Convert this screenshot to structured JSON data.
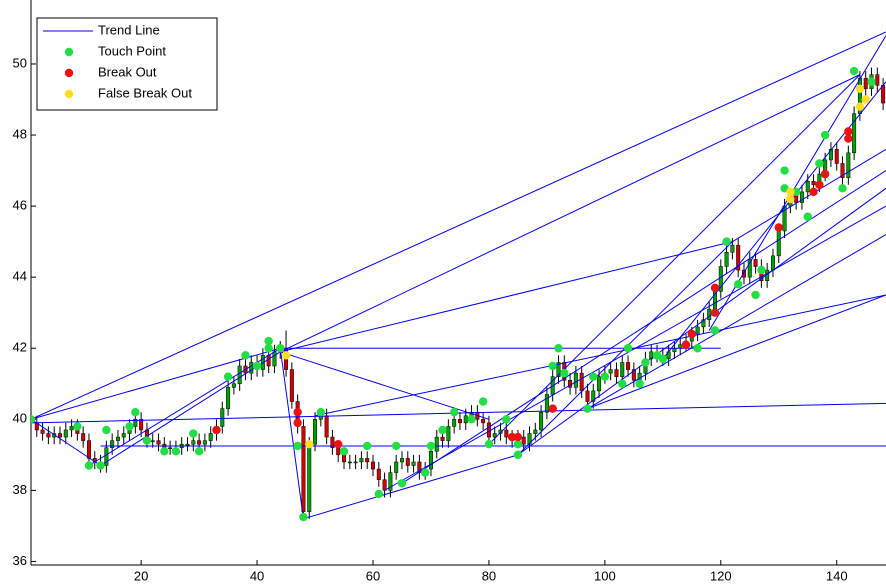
{
  "chart_data": {
    "type": "candlestick",
    "xlim": [
      1,
      148.5
    ],
    "ylim": [
      35.9,
      51.8
    ],
    "xticks": [
      20,
      40,
      60,
      80,
      100,
      120,
      140
    ],
    "yticks": [
      36,
      38,
      40,
      42,
      44,
      46,
      48,
      50
    ],
    "up_color": "#00a000",
    "down_color": "#d00000",
    "wick_color": "#000000",
    "legend": "upper left",
    "x": [
      1,
      2,
      3,
      4,
      5,
      6,
      7,
      8,
      9,
      10,
      11,
      12,
      13,
      14,
      15,
      16,
      17,
      18,
      19,
      20,
      21,
      22,
      23,
      24,
      25,
      26,
      27,
      28,
      29,
      30,
      31,
      32,
      33,
      34,
      35,
      36,
      37,
      38,
      39,
      40,
      41,
      42,
      43,
      44,
      45,
      46,
      47,
      48,
      49,
      50,
      51,
      52,
      53,
      54,
      55,
      56,
      57,
      58,
      59,
      60,
      61,
      62,
      63,
      64,
      65,
      66,
      67,
      68,
      69,
      70,
      71,
      72,
      73,
      74,
      75,
      76,
      77,
      78,
      79,
      80,
      81,
      82,
      83,
      84,
      85,
      86,
      87,
      88,
      89,
      90,
      91,
      92,
      93,
      94,
      95,
      96,
      97,
      98,
      99,
      100,
      101,
      102,
      103,
      104,
      105,
      106,
      107,
      108,
      109,
      110,
      111,
      112,
      113,
      114,
      115,
      116,
      117,
      118,
      119,
      120,
      121,
      122,
      123,
      124,
      125,
      126,
      127,
      128,
      129,
      130,
      131,
      132,
      133,
      134,
      135,
      136,
      137,
      138,
      139,
      140,
      141,
      142,
      143,
      144,
      145,
      146,
      147,
      148
    ],
    "open": [
      40.0,
      39.9,
      39.7,
      39.6,
      39.5,
      39.6,
      39.5,
      39.7,
      39.8,
      39.6,
      39.4,
      38.9,
      38.8,
      38.7,
      39.2,
      39.4,
      39.5,
      39.6,
      39.8,
      40.0,
      39.7,
      39.4,
      39.4,
      39.3,
      39.2,
      39.2,
      39.2,
      39.3,
      39.3,
      39.4,
      39.3,
      39.4,
      39.6,
      39.8,
      40.3,
      40.9,
      41.0,
      41.5,
      41.3,
      41.6,
      41.4,
      41.8,
      41.5,
      41.9,
      42.0,
      41.4,
      40.5,
      39.8,
      37.4,
      39.3,
      40.0,
      40.1,
      39.5,
      39.2,
      39.0,
      38.8,
      38.8,
      38.8,
      38.9,
      38.8,
      38.6,
      38.3,
      38.0,
      38.5,
      38.8,
      38.9,
      38.7,
      38.8,
      38.5,
      38.6,
      39.1,
      39.5,
      39.4,
      39.8,
      40.0,
      39.9,
      40.1,
      40.2,
      40.0,
      39.9,
      39.5,
      39.6,
      39.7,
      39.5,
      39.4,
      39.5,
      39.3,
      39.6,
      39.7,
      40.2,
      40.7,
      41.2,
      41.6,
      41.1,
      40.9,
      41.3,
      40.8,
      40.5,
      40.8,
      41.2,
      41.3,
      41.4,
      41.2,
      41.6,
      41.4,
      41.1,
      41.3,
      41.7,
      41.9,
      41.8,
      41.7,
      41.9,
      42.0,
      42.1,
      42.2,
      42.4,
      42.6,
      42.8,
      43.1,
      43.6,
      44.3,
      44.7,
      44.9,
      44.2,
      44.0,
      44.5,
      44.3,
      43.9,
      44.2,
      44.6,
      45.3,
      46.0,
      46.3,
      46.1,
      46.4,
      46.7,
      46.6,
      46.9,
      47.3,
      47.6,
      47.2,
      46.8,
      47.5,
      48.6,
      49.6,
      49.3,
      49.7,
      49.4
    ],
    "high": [
      40.2,
      40.1,
      39.9,
      39.8,
      39.8,
      39.8,
      39.9,
      40.0,
      40.0,
      39.8,
      39.6,
      39.1,
      39.0,
      39.4,
      39.6,
      39.7,
      39.8,
      40.0,
      40.2,
      40.2,
      39.9,
      39.6,
      39.6,
      39.5,
      39.4,
      39.4,
      39.5,
      39.5,
      39.6,
      39.6,
      39.6,
      39.8,
      40.0,
      40.5,
      41.1,
      41.2,
      41.7,
      41.7,
      41.8,
      41.8,
      42.0,
      42.0,
      42.1,
      42.2,
      42.5,
      41.6,
      40.7,
      40.0,
      39.5,
      40.2,
      40.3,
      40.3,
      39.7,
      39.4,
      39.2,
      39.0,
      39.0,
      39.1,
      39.1,
      39.0,
      38.8,
      38.5,
      38.7,
      39.0,
      39.1,
      39.1,
      39.0,
      39.0,
      38.8,
      39.3,
      39.7,
      39.7,
      40.0,
      40.2,
      40.2,
      40.3,
      40.4,
      40.4,
      40.2,
      40.1,
      39.8,
      39.9,
      39.9,
      39.7,
      39.7,
      39.7,
      39.8,
      39.9,
      40.4,
      40.9,
      41.4,
      41.8,
      41.8,
      41.3,
      41.5,
      41.5,
      41.0,
      41.0,
      41.4,
      41.5,
      41.6,
      41.6,
      41.8,
      41.8,
      41.6,
      41.5,
      41.9,
      42.1,
      42.1,
      42.0,
      42.1,
      42.2,
      42.3,
      42.4,
      42.6,
      42.8,
      43.0,
      43.3,
      43.8,
      44.5,
      44.9,
      45.1,
      45.1,
      44.4,
      44.7,
      44.7,
      44.5,
      44.4,
      44.8,
      45.5,
      46.2,
      46.5,
      46.5,
      46.6,
      46.9,
      46.9,
      47.1,
      47.5,
      47.8,
      47.8,
      47.4,
      47.7,
      48.8,
      49.8,
      49.8,
      49.9,
      49.9,
      49.6
    ],
    "low": [
      39.7,
      39.5,
      39.4,
      39.3,
      39.3,
      39.3,
      39.3,
      39.5,
      39.4,
      39.2,
      38.7,
      38.6,
      38.5,
      38.5,
      39.0,
      39.2,
      39.3,
      39.4,
      39.6,
      39.5,
      39.2,
      39.2,
      39.1,
      39.0,
      39.0,
      39.0,
      39.0,
      39.1,
      39.1,
      39.1,
      39.1,
      39.2,
      39.4,
      39.6,
      40.1,
      40.7,
      40.8,
      41.1,
      41.1,
      41.2,
      41.2,
      41.3,
      41.3,
      41.7,
      41.2,
      40.3,
      39.6,
      37.2,
      37.2,
      39.1,
      39.8,
      39.3,
      39.0,
      38.8,
      38.6,
      38.6,
      38.6,
      38.6,
      38.6,
      38.4,
      38.1,
      37.8,
      37.8,
      38.3,
      38.6,
      38.5,
      38.5,
      38.3,
      38.3,
      38.4,
      38.9,
      39.2,
      39.2,
      39.6,
      39.7,
      39.7,
      39.9,
      39.8,
      39.7,
      39.3,
      39.3,
      39.4,
      39.3,
      39.2,
      39.2,
      39.1,
      39.1,
      39.4,
      39.5,
      40.0,
      40.5,
      41.0,
      40.9,
      40.7,
      40.7,
      40.6,
      40.3,
      40.3,
      40.6,
      41.0,
      41.1,
      41.0,
      41.0,
      41.2,
      40.9,
      40.9,
      41.1,
      41.5,
      41.6,
      41.5,
      41.5,
      41.7,
      41.8,
      41.9,
      42.0,
      42.2,
      42.4,
      42.6,
      42.9,
      43.4,
      44.1,
      44.5,
      44.0,
      43.8,
      43.8,
      44.1,
      43.7,
      43.7,
      44.0,
      44.4,
      45.1,
      45.8,
      45.9,
      45.9,
      46.2,
      46.4,
      46.4,
      46.7,
      47.1,
      47.0,
      46.6,
      46.6,
      47.3,
      48.4,
      49.1,
      49.1,
      49.2,
      48.7
    ],
    "close": [
      39.9,
      39.7,
      39.6,
      39.5,
      39.6,
      39.5,
      39.7,
      39.8,
      39.6,
      39.4,
      38.9,
      38.8,
      38.7,
      39.2,
      39.4,
      39.5,
      39.6,
      39.8,
      40.0,
      39.7,
      39.4,
      39.4,
      39.3,
      39.2,
      39.2,
      39.2,
      39.3,
      39.3,
      39.4,
      39.3,
      39.4,
      39.6,
      39.8,
      40.3,
      40.9,
      41.0,
      41.5,
      41.3,
      41.6,
      41.4,
      41.8,
      41.5,
      41.9,
      42.0,
      41.4,
      40.5,
      39.8,
      37.4,
      39.3,
      40.0,
      40.1,
      39.5,
      39.2,
      39.0,
      38.8,
      38.8,
      38.8,
      38.9,
      38.8,
      38.6,
      38.3,
      38.0,
      38.5,
      38.8,
      38.9,
      38.7,
      38.8,
      38.5,
      38.6,
      39.1,
      39.5,
      39.4,
      39.8,
      40.0,
      39.9,
      40.1,
      40.2,
      40.0,
      39.9,
      39.5,
      39.6,
      39.7,
      39.5,
      39.4,
      39.5,
      39.3,
      39.6,
      39.7,
      40.2,
      40.7,
      41.2,
      41.6,
      41.1,
      40.9,
      41.3,
      40.8,
      40.5,
      40.8,
      41.2,
      41.3,
      41.4,
      41.2,
      41.6,
      41.4,
      41.1,
      41.3,
      41.7,
      41.9,
      41.8,
      41.7,
      41.9,
      42.0,
      42.1,
      42.2,
      42.4,
      42.6,
      42.8,
      43.1,
      43.6,
      44.3,
      44.7,
      44.9,
      44.2,
      44.0,
      44.5,
      44.3,
      43.9,
      44.2,
      44.6,
      45.3,
      46.0,
      46.3,
      46.1,
      46.4,
      46.7,
      46.6,
      46.9,
      47.3,
      47.6,
      47.2,
      46.8,
      47.5,
      48.6,
      49.6,
      49.3,
      49.7,
      49.4,
      48.9
    ],
    "trend_lines": {
      "name": "Trend Line",
      "color": "#0000ee",
      "segments": [
        {
          "x": [
            1,
            148.5
          ],
          "y": [
            40.0,
            50.9
          ]
        },
        {
          "x": [
            1,
            44
          ],
          "y": [
            40.0,
            42.0
          ]
        },
        {
          "x": [
            1,
            148.5
          ],
          "y": [
            39.9,
            40.45
          ]
        },
        {
          "x": [
            13,
            148.5
          ],
          "y": [
            39.25,
            39.25
          ]
        },
        {
          "x": [
            1,
            13
          ],
          "y": [
            40.0,
            38.7
          ]
        },
        {
          "x": [
            13,
            44
          ],
          "y": [
            38.7,
            41.9
          ]
        },
        {
          "x": [
            11,
            44
          ],
          "y": [
            38.7,
            42.0
          ]
        },
        {
          "x": [
            44,
            144
          ],
          "y": [
            41.9,
            49.7
          ]
        },
        {
          "x": [
            44,
            122
          ],
          "y": [
            41.9,
            45.0
          ]
        },
        {
          "x": [
            44,
            120
          ],
          "y": [
            42.0,
            42.0
          ]
        },
        {
          "x": [
            44,
            80
          ],
          "y": [
            41.9,
            40.0
          ]
        },
        {
          "x": [
            48,
            85
          ],
          "y": [
            37.2,
            39.0
          ]
        },
        {
          "x": [
            48,
            44
          ],
          "y": [
            37.2,
            42.0
          ]
        },
        {
          "x": [
            62,
            148.5
          ],
          "y": [
            38.0,
            46.0
          ]
        },
        {
          "x": [
            65,
            148.5
          ],
          "y": [
            38.2,
            47.0
          ]
        },
        {
          "x": [
            85,
            148.5
          ],
          "y": [
            39.0,
            46.5
          ]
        },
        {
          "x": [
            85,
            122
          ],
          "y": [
            39.0,
            45.0
          ]
        },
        {
          "x": [
            97,
            148.5
          ],
          "y": [
            40.3,
            45.2
          ]
        },
        {
          "x": [
            97,
            148.5
          ],
          "y": [
            40.3,
            43.5
          ]
        },
        {
          "x": [
            118,
            148.5
          ],
          "y": [
            42.5,
            50.8
          ]
        },
        {
          "x": [
            110,
            148.5
          ],
          "y": [
            41.7,
            49.5
          ]
        },
        {
          "x": [
            122,
            148.5
          ],
          "y": [
            45.0,
            47.6
          ]
        },
        {
          "x": [
            50,
            148.5
          ],
          "y": [
            40.1,
            43.5
          ]
        },
        {
          "x": [
            80,
            144
          ],
          "y": [
            39.3,
            49.7
          ]
        }
      ]
    },
    "points": [
      {
        "name": "Touch Point",
        "color": "#22dd44",
        "x": [
          1,
          9,
          11,
          13,
          14,
          18,
          19,
          21,
          24,
          26,
          29,
          30,
          35,
          38,
          40,
          42,
          42,
          44,
          47,
          48,
          51,
          55,
          59,
          61,
          64,
          65,
          69,
          70,
          72,
          74,
          77,
          79,
          80,
          83,
          85,
          85,
          91,
          92,
          93,
          97,
          98,
          100,
          103,
          104,
          106,
          107,
          109,
          110,
          116,
          119,
          121,
          123,
          126,
          127,
          131,
          131,
          133,
          135,
          137,
          138,
          141,
          143,
          146
        ],
        "y": [
          40,
          39.8,
          38.7,
          38.7,
          39.7,
          39.8,
          40.2,
          39.4,
          39.1,
          39.1,
          39.6,
          39.1,
          41.2,
          41.8,
          41.5,
          42.2,
          42,
          42,
          39.25,
          37.25,
          40.2,
          39.1,
          39.25,
          37.9,
          39.25,
          38.2,
          38.5,
          39.25,
          39.7,
          40.2,
          40,
          40.5,
          39.3,
          40,
          39,
          39.3,
          41.5,
          42,
          41.3,
          40.3,
          41.2,
          41.2,
          41,
          42,
          41,
          41.6,
          41.8,
          41.7,
          42,
          42.5,
          45,
          43.8,
          43.5,
          44.2,
          47,
          46.5,
          46.4,
          45.7,
          47.2,
          48,
          46.5,
          49.8,
          49.5
        ]
      },
      {
        "name": "Break Out",
        "color": "#ee1111",
        "x": [
          33,
          47,
          47,
          54,
          84,
          85,
          91,
          114,
          115,
          119,
          119,
          130,
          136,
          137,
          138,
          142,
          142
        ],
        "y": [
          39.7,
          40.2,
          39.9,
          39.3,
          39.5,
          39.5,
          40.3,
          42.1,
          42.4,
          43,
          43.7,
          45.4,
          46.4,
          46.6,
          46.9,
          47.9,
          48.1
        ]
      },
      {
        "name": "False Break Out",
        "color": "#ffdd22",
        "x": [
          45,
          49,
          132,
          132,
          144,
          144,
          145
        ],
        "y": [
          41.8,
          39.3,
          46.2,
          46.4,
          48.8,
          49.3,
          49
        ]
      }
    ]
  }
}
